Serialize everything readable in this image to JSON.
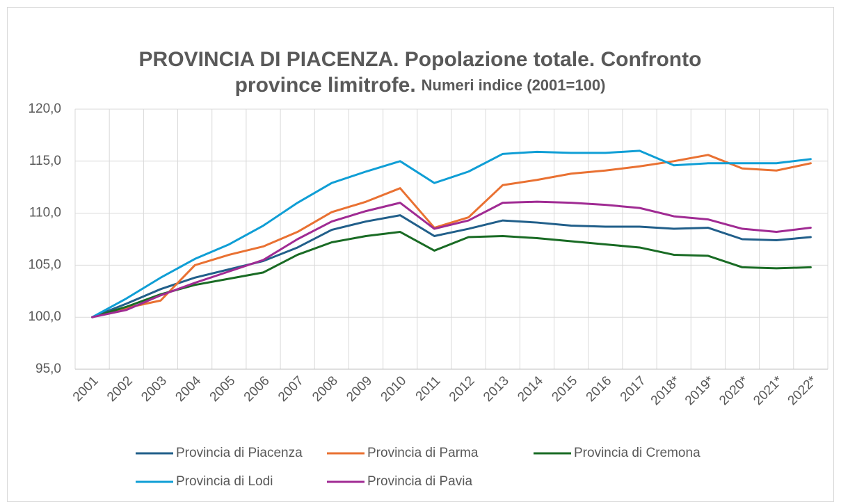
{
  "chart_data": {
    "type": "line",
    "title_lines": [
      "PROVINCIA DI PIACENZA. Popolazione totale. Confronto",
      "province limitrofe."
    ],
    "subtitle": "Numeri indice (2001=100)",
    "categories": [
      "2001",
      "2002",
      "2003",
      "2004",
      "2005",
      "2006",
      "2007",
      "2008",
      "2009",
      "2010",
      "2011",
      "2012",
      "2013",
      "2014",
      "2015",
      "2016",
      "2017",
      "2018*",
      "2019*",
      "2020*",
      "2021*",
      "2022*"
    ],
    "series": [
      {
        "name": "Provincia di Piacenza",
        "color": "#215f8a",
        "values": [
          100,
          101.3,
          102.7,
          103.8,
          104.6,
          105.4,
          106.7,
          108.4,
          109.2,
          109.8,
          107.8,
          108.5,
          109.3,
          109.1,
          108.8,
          108.7,
          108.7,
          108.5,
          108.6,
          107.5,
          107.4,
          107.7
        ]
      },
      {
        "name": "Provincia di Parma",
        "color": "#e97132",
        "values": [
          100,
          100.9,
          101.6,
          105.0,
          106.0,
          106.8,
          108.2,
          110.1,
          111.1,
          112.4,
          108.6,
          109.6,
          112.7,
          113.2,
          113.8,
          114.1,
          114.5,
          115.0,
          115.6,
          114.3,
          114.1,
          114.8
        ]
      },
      {
        "name": "Provincia di Cremona",
        "color": "#196b24",
        "values": [
          100,
          101.0,
          102.2,
          103.1,
          103.7,
          104.3,
          106.0,
          107.2,
          107.8,
          108.2,
          106.4,
          107.7,
          107.8,
          107.6,
          107.3,
          107.0,
          106.7,
          106.0,
          105.9,
          104.8,
          104.7,
          104.8
        ]
      },
      {
        "name": "Provincia di Lodi",
        "color": "#0f9ed5",
        "values": [
          100,
          101.8,
          103.8,
          105.6,
          107.0,
          108.8,
          111.0,
          112.9,
          114.0,
          115.0,
          112.9,
          114.0,
          115.7,
          115.9,
          115.8,
          115.8,
          116.0,
          114.6,
          114.8,
          114.8,
          114.8,
          115.2
        ]
      },
      {
        "name": "Provincia di Pavia",
        "color": "#a02b93",
        "values": [
          100,
          100.7,
          102.1,
          103.3,
          104.4,
          105.5,
          107.5,
          109.2,
          110.2,
          111.0,
          108.5,
          109.3,
          111.0,
          111.1,
          111.0,
          110.8,
          110.5,
          109.7,
          109.4,
          108.5,
          108.2,
          108.6
        ]
      }
    ],
    "ylim": [
      95,
      120
    ],
    "yticks": [
      {
        "value": 95,
        "label": "95,0"
      },
      {
        "value": 100,
        "label": "100,0"
      },
      {
        "value": 105,
        "label": "105,0"
      },
      {
        "value": 110,
        "label": "110,0"
      },
      {
        "value": 115,
        "label": "115,0"
      },
      {
        "value": 120,
        "label": "120,0"
      }
    ],
    "grid": true,
    "legend": "bottom"
  }
}
